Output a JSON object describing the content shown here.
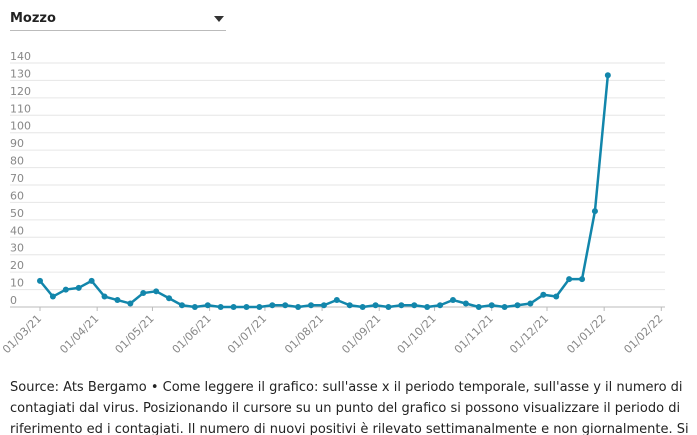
{
  "dropdown": {
    "label": "Mozzo"
  },
  "chart_data": {
    "type": "line",
    "x": [
      "2021-03-01",
      "2021-03-08",
      "2021-03-15",
      "2021-03-22",
      "2021-03-29",
      "2021-04-05",
      "2021-04-12",
      "2021-04-19",
      "2021-04-26",
      "2021-05-03",
      "2021-05-10",
      "2021-05-17",
      "2021-05-24",
      "2021-05-31",
      "2021-06-07",
      "2021-06-14",
      "2021-06-21",
      "2021-06-28",
      "2021-07-05",
      "2021-07-12",
      "2021-07-19",
      "2021-07-26",
      "2021-08-02",
      "2021-08-09",
      "2021-08-16",
      "2021-08-23",
      "2021-08-30",
      "2021-09-06",
      "2021-09-13",
      "2021-09-20",
      "2021-09-27",
      "2021-10-04",
      "2021-10-11",
      "2021-10-18",
      "2021-10-25",
      "2021-11-01",
      "2021-11-08",
      "2021-11-15",
      "2021-11-22",
      "2021-11-29",
      "2021-12-06",
      "2021-12-13",
      "2021-12-20",
      "2021-12-27",
      "2022-01-03"
    ],
    "series": [
      {
        "color": "#1286ab",
        "values": [
          15,
          6,
          10,
          11,
          15,
          6,
          4,
          2,
          8,
          9,
          5,
          1,
          0,
          1,
          0,
          0,
          0,
          0,
          1,
          1,
          0,
          1,
          1,
          4,
          1,
          0,
          1,
          0,
          1,
          1,
          0,
          1,
          4,
          2,
          0,
          1,
          0,
          1,
          2,
          7,
          6,
          16,
          16,
          55,
          133
        ]
      }
    ],
    "xlim": [
      "2021-03-01",
      "2022-02-03"
    ],
    "xticks": [
      {
        "value": "2021-03-01",
        "label": "01/03/21"
      },
      {
        "value": "2021-04-01",
        "label": "01/04/21"
      },
      {
        "value": "2021-05-01",
        "label": "01/05/21"
      },
      {
        "value": "2021-06-01",
        "label": "01/06/21"
      },
      {
        "value": "2021-07-01",
        "label": "01/07/21"
      },
      {
        "value": "2021-08-01",
        "label": "01/08/21"
      },
      {
        "value": "2021-09-01",
        "label": "01/09/21"
      },
      {
        "value": "2021-10-01",
        "label": "01/10/21"
      },
      {
        "value": "2021-11-01",
        "label": "01/11/21"
      },
      {
        "value": "2021-12-01",
        "label": "01/12/21"
      },
      {
        "value": "2022-01-01",
        "label": "01/01/22"
      },
      {
        "value": "2022-02-01",
        "label": "01/02/22"
      }
    ],
    "ylim": [
      0,
      140
    ],
    "yticks": [
      0,
      10,
      20,
      30,
      40,
      50,
      60,
      70,
      80,
      90,
      100,
      110,
      120,
      130,
      140
    ],
    "grid": true
  },
  "source": "Source: Ats Bergamo • Come leggere il grafico: sull'asse x il periodo temporale, sull'asse y il numero di contagiati dal virus. Posizionando il cursore su un punto del grafico si possono visualizzare il periodo di riferimento ed i contagiati. Il numero di nuovi positivi è rilevato settimanalmente e non giornalmente. Si può selezionare un"
}
